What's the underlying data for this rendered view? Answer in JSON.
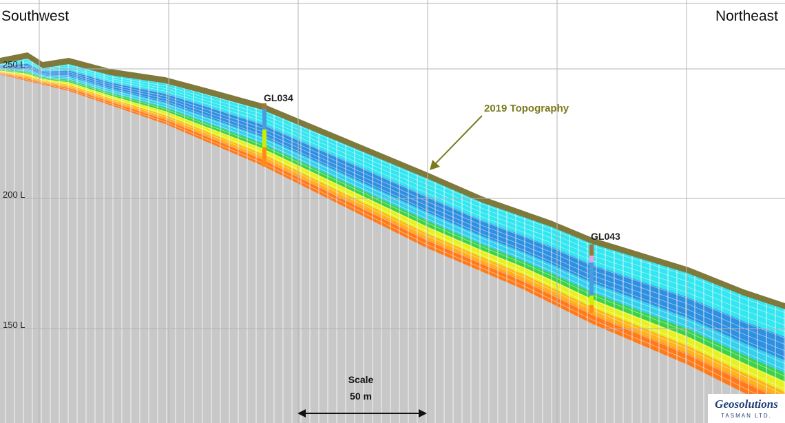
{
  "header": {
    "left": "Southwest",
    "right": "Northeast"
  },
  "levels": [
    "250 L",
    "200 L",
    "150 L"
  ],
  "drillholes": [
    {
      "label": "GL034"
    },
    {
      "label": "GL043"
    }
  ],
  "annotation": "2019 Topography",
  "scale": {
    "title": "Scale",
    "length": "50 m"
  },
  "logo": {
    "name": "Geosolutions",
    "sub": "TASMAN LTD."
  }
}
